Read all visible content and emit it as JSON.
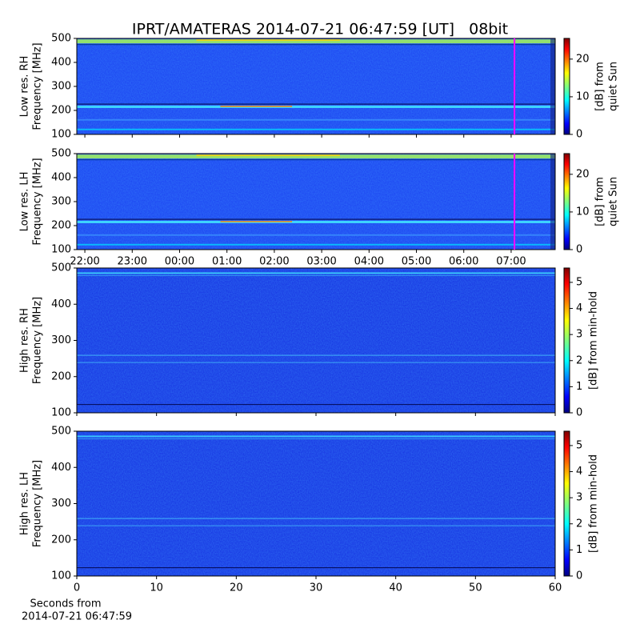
{
  "title": "IPRT/AMATERAS 2014-07-21 06:47:59 [UT]   08bit",
  "xlabel": [
    "Seconds from",
    "2014-07-21 06:47:59"
  ],
  "chart_data": [
    {
      "type": "spectrogram",
      "colormap": "jet",
      "ylabel": [
        "Low res. RH",
        "Frequency [MHz]"
      ],
      "ylim": [
        100,
        500
      ],
      "yticks": [
        100,
        200,
        300,
        400,
        500
      ],
      "xlim": [
        21.83,
        31.93
      ],
      "xticks": [
        {
          "value": 22,
          "label": "22:00"
        },
        {
          "value": 23,
          "label": "23:00"
        },
        {
          "value": 24,
          "label": "00:00"
        },
        {
          "value": 25,
          "label": "01:00"
        },
        {
          "value": 26,
          "label": "02:00"
        },
        {
          "value": 27,
          "label": "03:00"
        },
        {
          "value": 28,
          "label": "04:00"
        },
        {
          "value": 29,
          "label": "05:00"
        },
        {
          "value": 30,
          "label": "06:00"
        },
        {
          "value": 31,
          "label": "07:00"
        }
      ],
      "xtick_labels": false,
      "marker": {
        "x": 31.07,
        "color": "#ff00ff"
      },
      "colorbar": {
        "label": [
          "[dB] from",
          "quiet Sun"
        ],
        "lim": [
          0,
          25.5
        ],
        "ticks": [
          0,
          10,
          20
        ]
      }
    },
    {
      "type": "spectrogram",
      "colormap": "jet",
      "ylabel": [
        "Low res. LH",
        "Frequency [MHz]"
      ],
      "ylim": [
        100,
        500
      ],
      "yticks": [
        100,
        200,
        300,
        400,
        500
      ],
      "xlim": [
        21.83,
        31.93
      ],
      "xticks": [
        {
          "value": 22,
          "label": "22:00"
        },
        {
          "value": 23,
          "label": "23:00"
        },
        {
          "value": 24,
          "label": "00:00"
        },
        {
          "value": 25,
          "label": "01:00"
        },
        {
          "value": 26,
          "label": "02:00"
        },
        {
          "value": 27,
          "label": "03:00"
        },
        {
          "value": 28,
          "label": "04:00"
        },
        {
          "value": 29,
          "label": "05:00"
        },
        {
          "value": 30,
          "label": "06:00"
        },
        {
          "value": 31,
          "label": "07:00"
        }
      ],
      "xtick_labels": true,
      "marker": {
        "x": 31.07,
        "color": "#ff00ff"
      },
      "colorbar": {
        "label": [
          "[dB] from",
          "quiet Sun"
        ],
        "lim": [
          0,
          25.5
        ],
        "ticks": [
          0,
          10,
          20
        ]
      }
    },
    {
      "type": "spectrogram",
      "colormap": "jet",
      "ylabel": [
        "High res. RH",
        "Frequency [MHz]"
      ],
      "ylim": [
        100,
        500
      ],
      "yticks": [
        100,
        200,
        300,
        400,
        500
      ],
      "xlim": [
        0,
        60
      ],
      "xticks": [
        0,
        10,
        20,
        30,
        40,
        50,
        60
      ],
      "xtick_labels": false,
      "colorbar": {
        "label": [
          "[dB] from min-hold"
        ],
        "lim": [
          0,
          5.55
        ],
        "ticks": [
          0,
          1,
          2,
          3,
          4,
          5
        ]
      }
    },
    {
      "type": "spectrogram",
      "colormap": "jet",
      "ylabel": [
        "High res. LH",
        "Frequency [MHz]"
      ],
      "ylim": [
        100,
        500
      ],
      "yticks": [
        100,
        200,
        300,
        400,
        500
      ],
      "xlim": [
        0,
        60
      ],
      "xticks": [
        0,
        10,
        20,
        30,
        40,
        50,
        60
      ],
      "xtick_labels": true,
      "colorbar": {
        "label": [
          "[dB] from min-hold"
        ],
        "lim": [
          0,
          5.55
        ],
        "ticks": [
          0,
          1,
          2,
          3,
          4,
          5
        ]
      }
    }
  ]
}
